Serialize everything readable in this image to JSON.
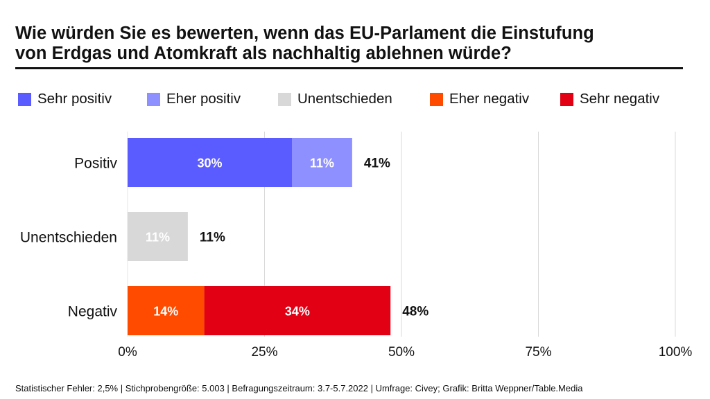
{
  "title": {
    "line1": "Wie würden Sie es bewerten, wenn das EU-Parlament die Einstufung",
    "line2": "von Erdgas und Atomkraft als nachhaltig ablehnen würde?"
  },
  "colors": {
    "sehr_positiv": "#5b5cff",
    "eher_positiv": "#8f90ff",
    "unentschieden": "#d8d8d8",
    "eher_negativ": "#ff4b00",
    "sehr_negativ": "#e10014",
    "grid": "#d9d9d9"
  },
  "legend": [
    {
      "label": "Sehr positiv",
      "color": "#5b5cff"
    },
    {
      "label": "Eher positiv",
      "color": "#8f90ff"
    },
    {
      "label": "Unentschieden",
      "color": "#d8d8d8"
    },
    {
      "label": "Eher negativ",
      "color": "#ff4b00"
    },
    {
      "label": "Sehr negativ",
      "color": "#e10014"
    }
  ],
  "chart_data": {
    "type": "bar",
    "orientation": "horizontal",
    "stacked": true,
    "title": "Wie würden Sie es bewerten, wenn das EU-Parlament die Einstufung von Erdgas und Atomkraft als nachhaltig ablehnen würde?",
    "categories": [
      "Positiv",
      "Unentschieden",
      "Negativ"
    ],
    "series": [
      {
        "name": "Sehr positiv",
        "color": "#5b5cff",
        "values": [
          30,
          0,
          0
        ],
        "labels": [
          "30%",
          "",
          ""
        ]
      },
      {
        "name": "Eher positiv",
        "color": "#8f90ff",
        "values": [
          11,
          0,
          0
        ],
        "labels": [
          "11%",
          "",
          ""
        ]
      },
      {
        "name": "Unentschieden",
        "color": "#d8d8d8",
        "values": [
          0,
          11,
          0
        ],
        "labels": [
          "",
          "11%",
          ""
        ]
      },
      {
        "name": "Eher negativ",
        "color": "#ff4b00",
        "values": [
          0,
          0,
          14
        ],
        "labels": [
          "",
          "",
          "14%"
        ]
      },
      {
        "name": "Sehr negativ",
        "color": "#e10014",
        "values": [
          0,
          0,
          34
        ],
        "labels": [
          "",
          "",
          "34%"
        ]
      }
    ],
    "totals": [
      "41%",
      "11%",
      "48%"
    ],
    "xlim": [
      0,
      100
    ],
    "xticks": [
      "0%",
      "25%",
      "50%",
      "75%",
      "100%"
    ],
    "xlabel": "",
    "ylabel": "",
    "grid": true
  },
  "footer": "Statistischer Fehler: 2,5% | Stichprobengröße: 5.003 | Befragungszeitraum: 3.7-5.7.2022 | Umfrage: Civey; Grafik: Britta Weppner/Table.Media"
}
